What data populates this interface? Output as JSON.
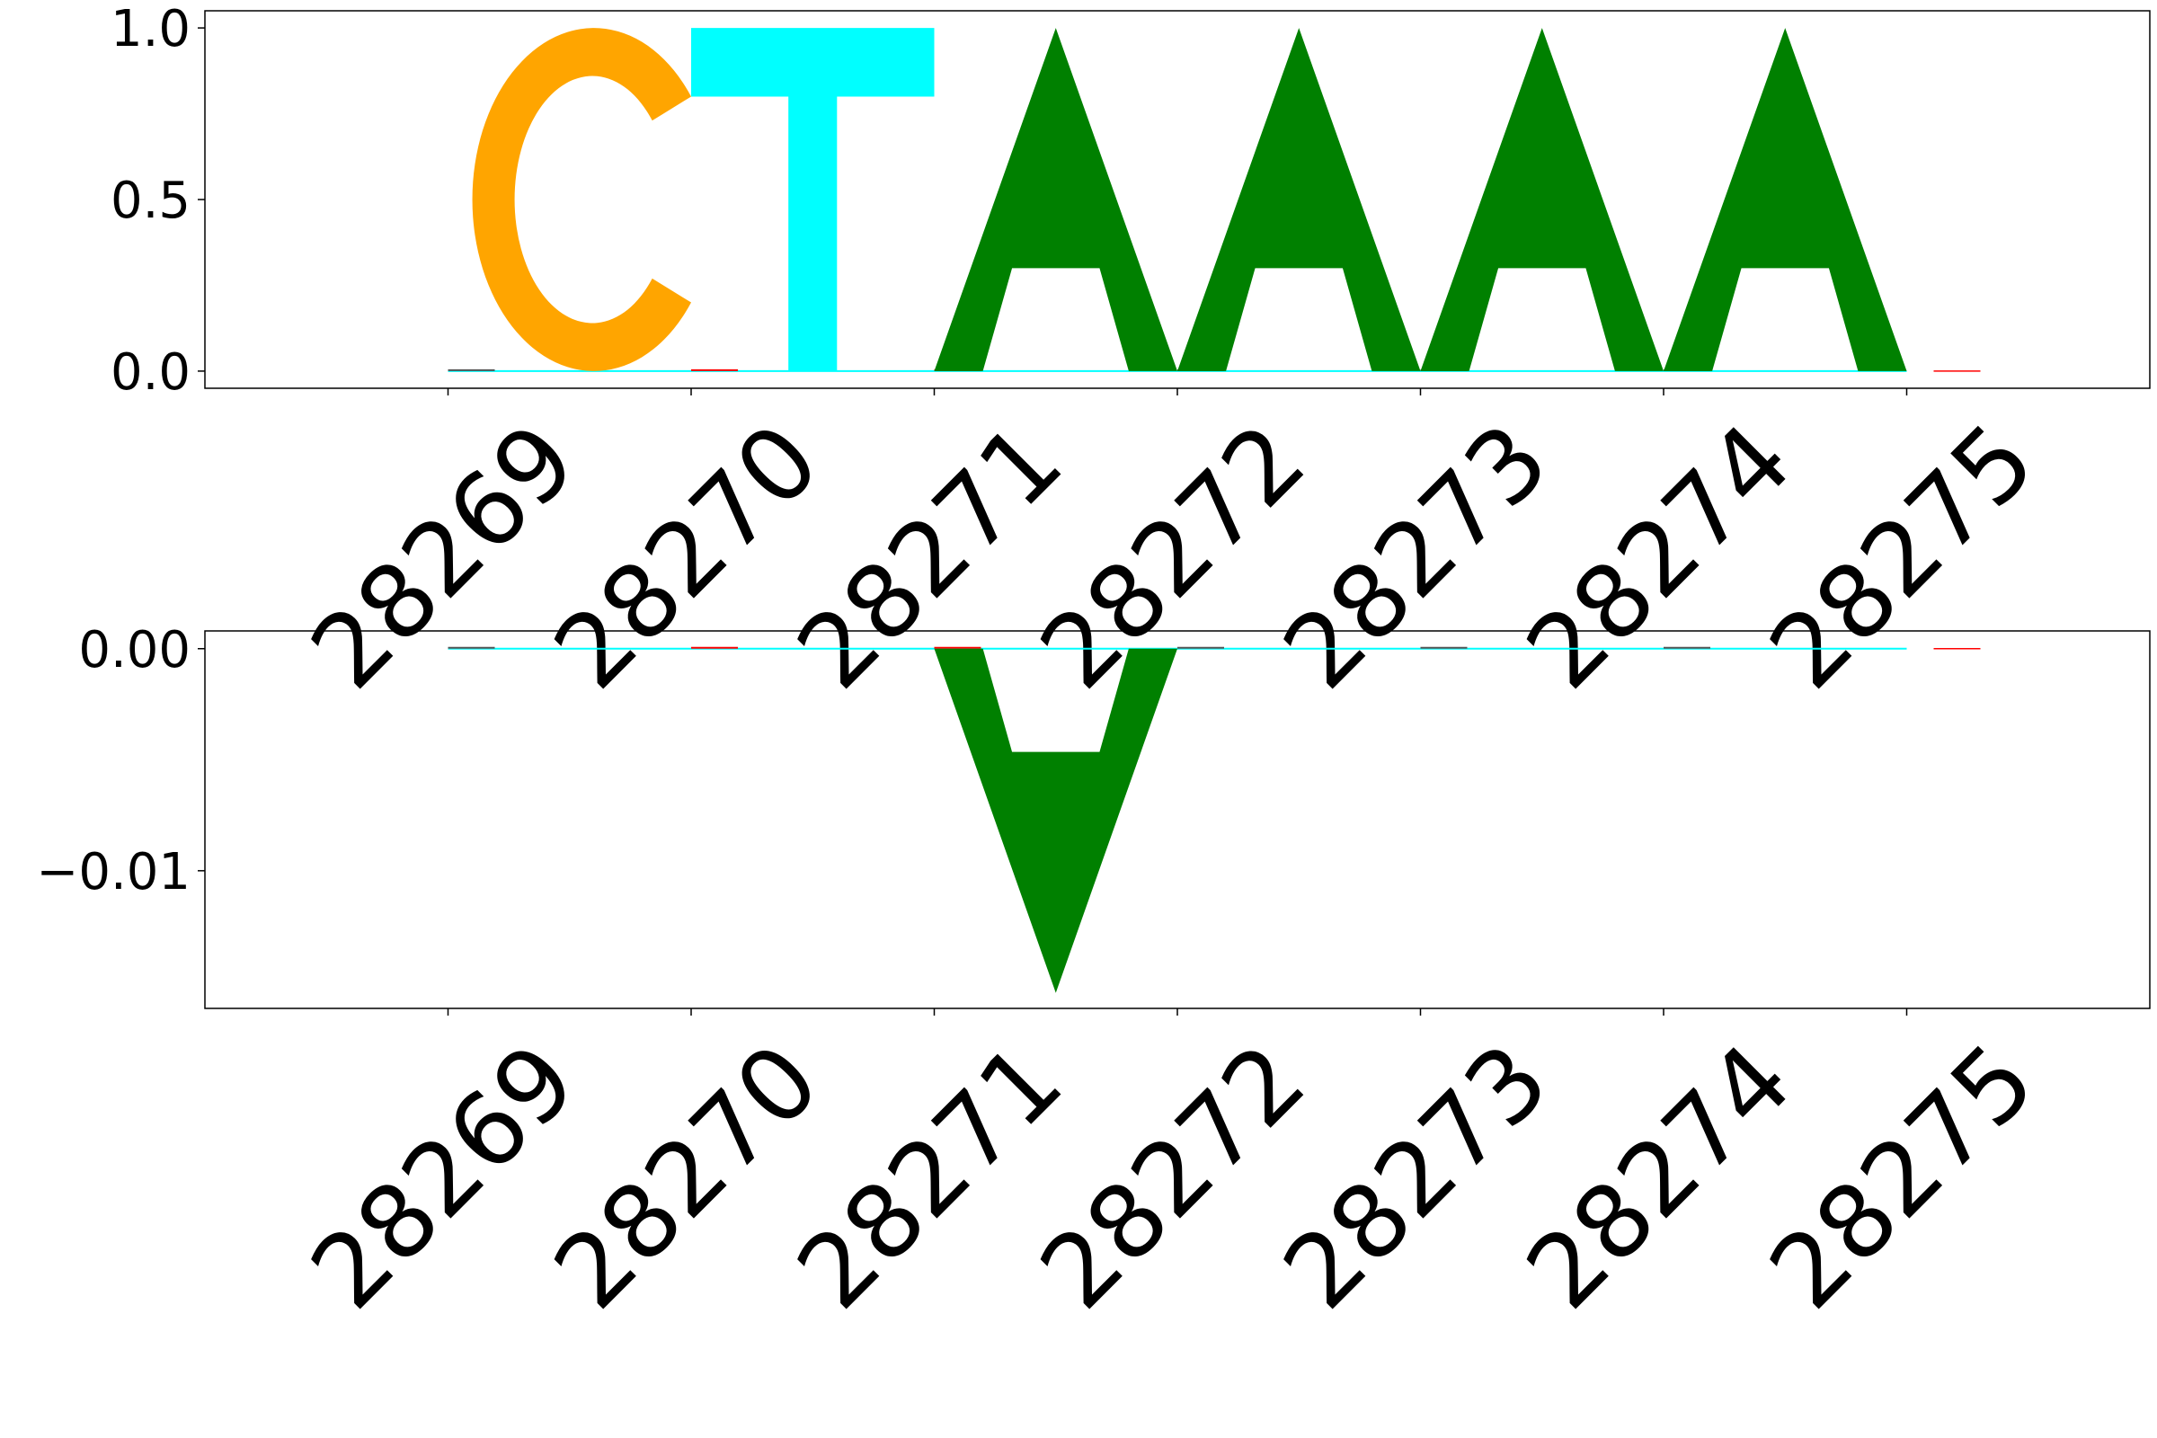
{
  "chart_data": [
    {
      "type": "logo",
      "positions": [
        28269,
        28270,
        28271,
        28272,
        28273,
        28274,
        28275
      ],
      "ylim": [
        -0.05,
        1.05
      ],
      "yticks": [
        0.0,
        0.5,
        1.0
      ],
      "ytick_labels": [
        "0.0",
        "0.5",
        "1.0"
      ],
      "xtick_labels": [
        "28269",
        "28270",
        "28271",
        "28272",
        "28273",
        "28274",
        "28275"
      ],
      "letters": [
        {
          "base": "C",
          "color": "#FFA500",
          "x": 28269.5,
          "bottom": 0.0,
          "top": 1.0
        },
        {
          "base": "T",
          "color": "#00FFFF",
          "x": 28270.5,
          "bottom": 0.0,
          "top": 1.0
        },
        {
          "base": "A",
          "color": "#008000",
          "x": 28271.5,
          "bottom": 0.0,
          "top": 1.0
        },
        {
          "base": "A",
          "color": "#008000",
          "x": 28272.5,
          "bottom": 0.0,
          "top": 1.0
        },
        {
          "base": "A",
          "color": "#008000",
          "x": 28273.5,
          "bottom": 0.0,
          "top": 1.0
        },
        {
          "base": "A",
          "color": "#008000",
          "x": 28274.5,
          "bottom": 0.0,
          "top": 1.0
        }
      ]
    },
    {
      "type": "logo",
      "positions": [
        28269,
        28270,
        28271,
        28272,
        28273,
        28274,
        28275
      ],
      "ylim": [
        -0.0162,
        0.0008
      ],
      "yticks": [
        0.0,
        -0.01
      ],
      "ytick_labels": [
        "0.00",
        "−0.01"
      ],
      "xtick_labels": [
        "28269",
        "28270",
        "28271",
        "28272",
        "28273",
        "28274",
        "28275"
      ],
      "letters": [
        {
          "base": "A",
          "color": "#008000",
          "x": 28271.5,
          "bottom": -0.0155,
          "top": 0.0,
          "flipped": true
        }
      ]
    }
  ],
  "colors": {
    "A": "#008000",
    "C": "#FFA500",
    "G": "#FF0000",
    "T": "#00FFFF",
    "axis": "#000000"
  }
}
